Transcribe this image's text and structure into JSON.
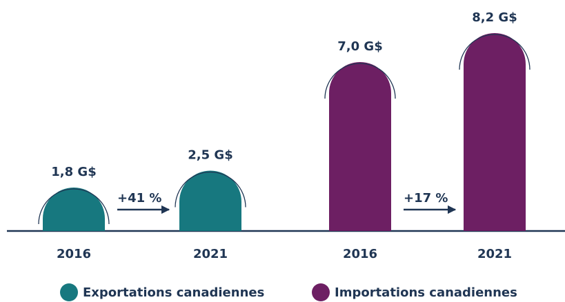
{
  "chart_data": {
    "type": "bar",
    "groups": [
      {
        "name": "Exportations canadiennes",
        "color": "#17787f",
        "categories": [
          "2016",
          "2021"
        ],
        "values": [
          1.8,
          2.5
        ],
        "value_labels": [
          "1,8 G$",
          "2,5 G$"
        ],
        "change": "+41 %"
      },
      {
        "name": "Importations canadiennes",
        "color": "#6d1f63",
        "categories": [
          "2016",
          "2021"
        ],
        "values": [
          7.0,
          8.2
        ],
        "value_labels": [
          "7,0 G$",
          "8,2 G$"
        ],
        "change": "+17 %"
      }
    ]
  }
}
